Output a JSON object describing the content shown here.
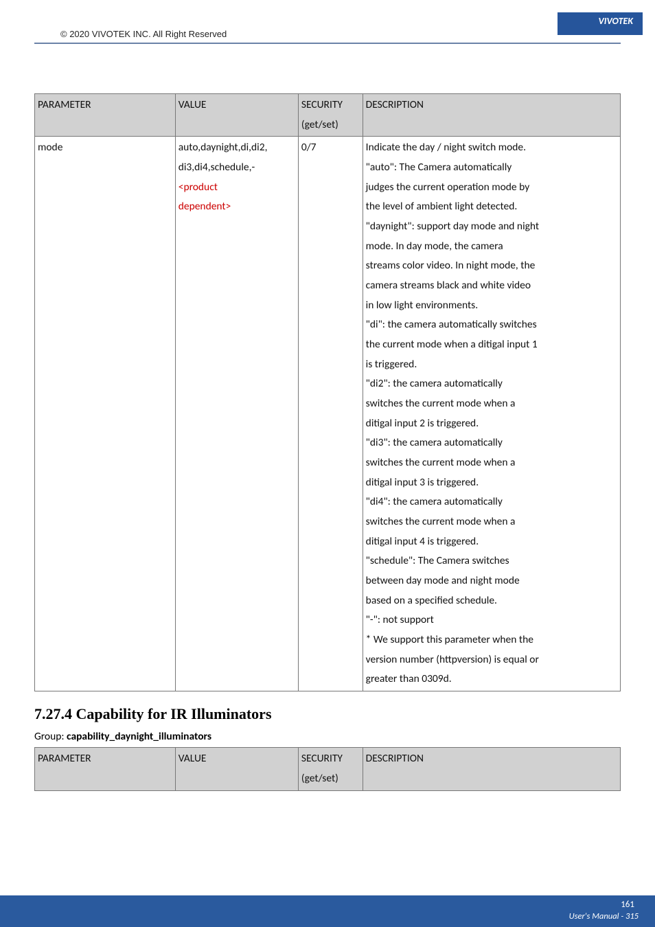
{
  "header": {
    "brand": "VIVOTEK",
    "copyright": "© 2020 VIVOTEK INC. All Right Reserved"
  },
  "table1": {
    "columns": [
      "PARAMETER",
      "VALUE",
      "SECURITY (get/set)",
      "DESCRIPTION"
    ],
    "col_header_parameter": "PARAMETER",
    "col_header_value": "VALUE",
    "col_header_security": "SECURITY",
    "col_header_security_sub": "(get/set)",
    "col_header_description": "DESCRIPTION",
    "row": {
      "parameter": "mode",
      "value_line1": "auto,daynight,di,di2,",
      "value_line2": "di3,di4,schedule,-",
      "value_line3": "<product",
      "value_line4": "dependent>",
      "security": "0/7",
      "description_lines": [
        "Indicate the day / night switch mode.",
        "\"auto\": The Camera automatically",
        "judges the current operation mode by",
        "the level of ambient light detected.",
        "\"daynight\": support day mode and night",
        "mode. In day mode, the camera",
        "streams color video. In night mode, the",
        "camera streams black and white video",
        "in low light environments.",
        "\"di\": the camera automatically switches",
        "the current mode when a ditigal input 1",
        "is triggered.",
        "\"di2\": the camera automatically",
        "switches the current mode when a",
        "ditigal input 2 is triggered.",
        "\"di3\": the camera automatically",
        "switches the current mode when a",
        "ditigal input 3 is triggered.",
        "\"di4\": the camera automatically",
        "switches the current mode when a",
        "ditigal input 4 is triggered.",
        "\"schedule\": The Camera switches",
        "between day mode and night mode",
        "based on a specified schedule.",
        "\"-\": not support",
        "* We support this parameter when the",
        "version number (httpversion) is equal or",
        "greater than 0309d."
      ]
    }
  },
  "section_heading": "7.27.4  Capability for IR Illuminators",
  "group_label_prefix": "Group: ",
  "group_label_bold": "capability_daynight_illuminators",
  "table2": {
    "col_header_parameter": "PARAMETER",
    "col_header_value": "VALUE",
    "col_header_security": "SECURITY",
    "col_header_security_sub": "(get/set)",
    "col_header_description": "DESCRIPTION"
  },
  "footer": {
    "page_num": "161",
    "manual_label": "User's Manual - 315"
  },
  "colors": {
    "header_bg": "#26559b",
    "underline": "#6b82a8",
    "th_bg": "#d1d1d1",
    "border": "#777777",
    "red_text": "#cc0000",
    "footer_bg": "#2a5a9e"
  }
}
